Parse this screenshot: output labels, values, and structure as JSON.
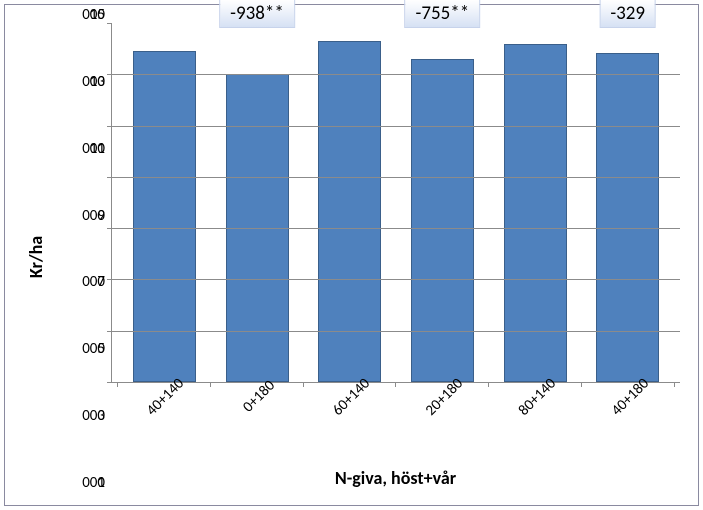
{
  "chart": {
    "type": "bar",
    "ylabel": "Kr/ha",
    "xlabel": "N-giva, höst+vår",
    "background_color": "#ffffff",
    "border_color": "#8a8aa0",
    "grid_color": "#8b8b8b",
    "bar_color": "#4f81bd",
    "bar_border_color": "#3a5f8a",
    "label_fontsize_pt": 18,
    "tick_fontsize_pt": 15,
    "annotation_fontsize_pt": 19,
    "annotation_bg_gradient": [
      "#ffffff",
      "#d6e1f4"
    ],
    "ylim": [
      1000,
      15000
    ],
    "ytick_step": 2000,
    "yticks": [
      15000,
      13000,
      11000,
      9000,
      7000,
      5000,
      3000,
      1000
    ],
    "ytick_labels": [
      "15 000",
      "13 000",
      "11 000",
      "9 000",
      "7 000",
      "5 000",
      "3 000",
      "1 000"
    ],
    "categories": [
      "40+140",
      "0+180",
      "60+140",
      "20+180",
      "80+140",
      "40+180"
    ],
    "values": [
      13900,
      13000,
      14300,
      13600,
      14200,
      13850
    ],
    "bar_width_ratio": 0.68,
    "annotations": [
      {
        "index": 1,
        "text": "-938**"
      },
      {
        "index": 3,
        "text": "-755**"
      },
      {
        "index": 5,
        "text": "-329"
      }
    ]
  }
}
